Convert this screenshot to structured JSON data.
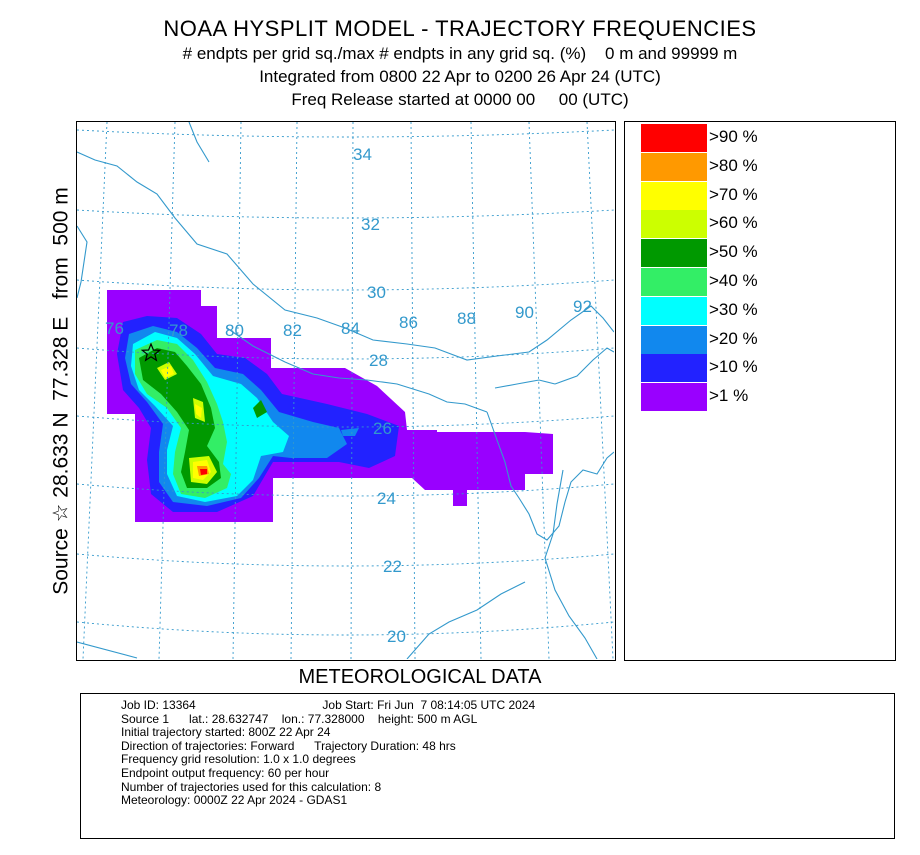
{
  "header": {
    "title": "NOAA HYSPLIT MODEL - TRAJECTORY FREQUENCIES",
    "line2": "# endpts per grid sq./max # endpts in any grid sq. (%)    0 m and 99999 m",
    "line3": "Integrated from 0800 22 Apr to 0200 26 Apr 24 (UTC)",
    "line4": "Freq Release started at 0000 00     00 (UTC)"
  },
  "side_label": "Source ☆ 28.633 N  77.328 E   from  500 m",
  "met_title": "METEOROLOGICAL DATA",
  "map": {
    "lat_labels": [
      "34",
      "32",
      "30",
      "28",
      "26",
      "24",
      "22",
      "20"
    ],
    "lon_labels": [
      "76",
      "78",
      "80",
      "82",
      "84",
      "86",
      "88",
      "90",
      "92"
    ],
    "source_marker": "star-icon",
    "colors": {
      "coast": "#3399cc",
      "grid": "#3399cc",
      "labels": "#3399cc"
    }
  },
  "legend": {
    "items": [
      {
        "label": ">90 %",
        "color": "#ff0000"
      },
      {
        "label": ">80 %",
        "color": "#ff9900"
      },
      {
        "label": ">70 %",
        "color": "#ffff00"
      },
      {
        "label": ">60 %",
        "color": "#ccff00"
      },
      {
        "label": ">50 %",
        "color": "#009900"
      },
      {
        "label": ">40 %",
        "color": "#33ee66"
      },
      {
        "label": ">30 %",
        "color": "#00ffff"
      },
      {
        "label": ">20 %",
        "color": "#1188ee"
      },
      {
        "label": ">10 %",
        "color": "#2222ff"
      },
      {
        "label": ">1 %",
        "color": "#9900ff"
      }
    ]
  },
  "info": {
    "lines": [
      "Job ID: 13364                                      Job Start: Fri Jun  7 08:14:05 UTC 2024",
      "Source 1      lat.: 28.632747    lon.: 77.328000    height: 500 m AGL",
      "Initial trajectory started: 800Z 22 Apr 24",
      "Direction of trajectories: Forward      Trajectory Duration: 48 hrs",
      "Frequency grid resolution: 1.0 x 1.0 degrees",
      "Endpoint output frequency: 60 per hour",
      "Number of trajectories used for this calculation: 8",
      "Meteorology: 0000Z 22 Apr 2024 - GDAS1"
    ]
  }
}
